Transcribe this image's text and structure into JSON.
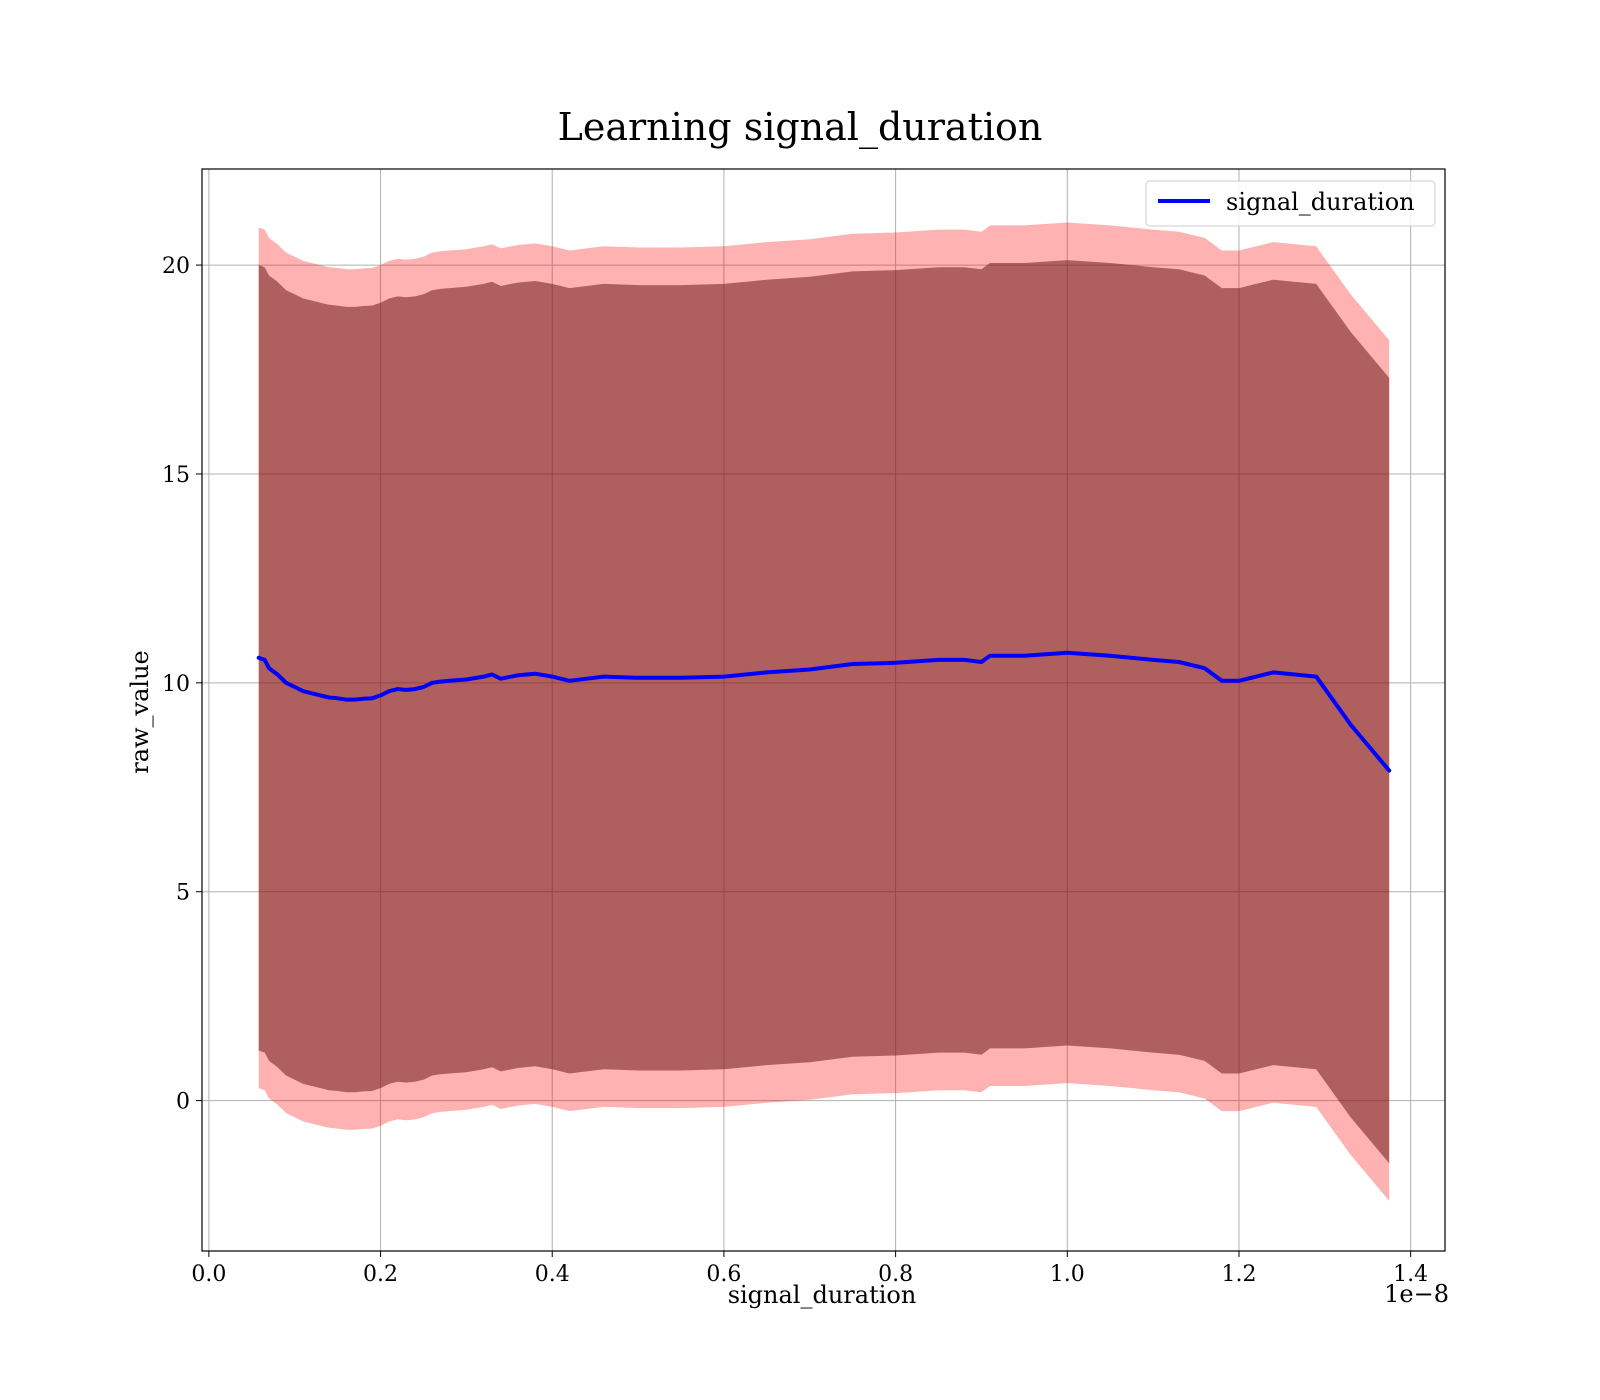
{
  "chart_data": {
    "type": "area",
    "title": "Learning signal_duration",
    "xlabel": "signal_duration",
    "ylabel": "raw_value",
    "x_offset_label": "1e−8",
    "xlim": [
      -0.008,
      1.44
    ],
    "ylim": [
      -3.6,
      22.3
    ],
    "x_ticks": [
      0.0,
      0.2,
      0.4,
      0.6,
      0.8,
      1.0,
      1.2,
      1.4
    ],
    "x_tick_labels": [
      "0.0",
      "0.2",
      "0.4",
      "0.6",
      "0.8",
      "1.0",
      "1.2",
      "1.4"
    ],
    "y_ticks": [
      0,
      5,
      10,
      15,
      20
    ],
    "y_tick_labels": [
      "0",
      "5",
      "10",
      "15",
      "20"
    ],
    "grid": true,
    "legend": {
      "placement": "upper right",
      "entries": [
        "signal_duration"
      ]
    },
    "colors": {
      "line": "#0000ff",
      "outer_band": "#ff0000",
      "inner_band": "#6f1c1c"
    },
    "series": [
      {
        "name": "signal_duration",
        "x": [
          0.058,
          0.065,
          0.07,
          0.08,
          0.09,
          0.1,
          0.11,
          0.12,
          0.13,
          0.14,
          0.15,
          0.16,
          0.17,
          0.18,
          0.19,
          0.2,
          0.21,
          0.22,
          0.23,
          0.24,
          0.25,
          0.26,
          0.27,
          0.28,
          0.3,
          0.32,
          0.33,
          0.34,
          0.36,
          0.38,
          0.4,
          0.42,
          0.44,
          0.46,
          0.5,
          0.55,
          0.6,
          0.65,
          0.7,
          0.75,
          0.8,
          0.85,
          0.88,
          0.9,
          0.91,
          0.95,
          1.0,
          1.05,
          1.1,
          1.13,
          1.16,
          1.18,
          1.2,
          1.24,
          1.29,
          1.33,
          1.375
        ],
        "y": [
          10.6,
          10.55,
          10.35,
          10.2,
          10.0,
          9.9,
          9.8,
          9.75,
          9.7,
          9.65,
          9.63,
          9.6,
          9.6,
          9.62,
          9.63,
          9.7,
          9.8,
          9.85,
          9.83,
          9.85,
          9.9,
          10.0,
          10.03,
          10.05,
          10.08,
          10.15,
          10.2,
          10.1,
          10.18,
          10.22,
          10.15,
          10.05,
          10.1,
          10.15,
          10.12,
          10.12,
          10.15,
          10.25,
          10.32,
          10.45,
          10.48,
          10.55,
          10.55,
          10.5,
          10.65,
          10.65,
          10.72,
          10.65,
          10.55,
          10.5,
          10.35,
          10.05,
          10.05,
          10.25,
          10.15,
          9.0,
          7.9
        ],
        "band_inner_halfwidth": 9.4,
        "band_outer_halfwidth": 10.3
      }
    ]
  }
}
